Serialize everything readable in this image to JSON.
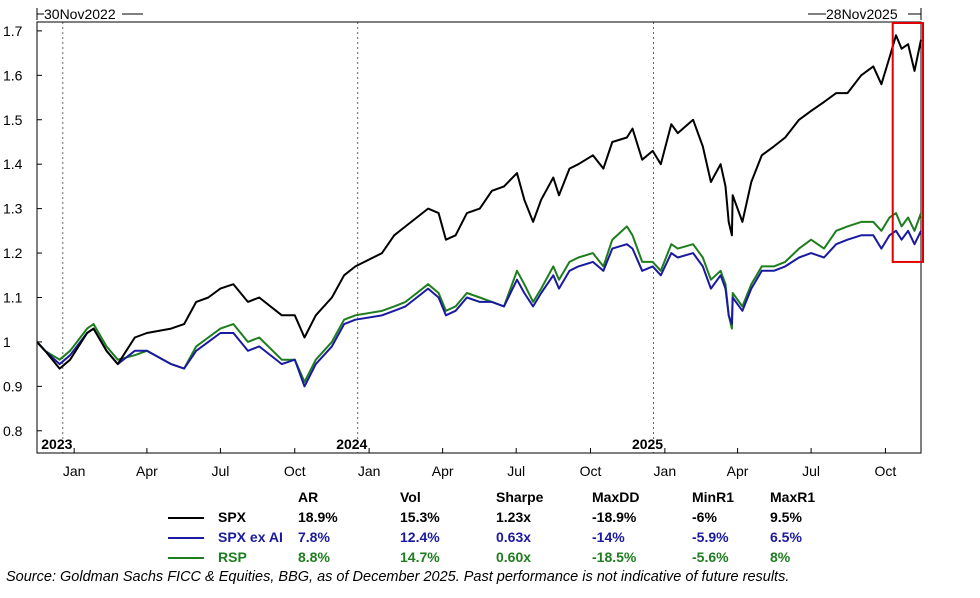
{
  "header": {
    "start_label": "30Nov2022",
    "end_label": "28Nov2025"
  },
  "chart_data": {
    "type": "line",
    "x_range": [
      "2022-11-30",
      "2025-11-28"
    ],
    "ylim": [
      0.75,
      1.72
    ],
    "yticks": [
      0.8,
      0.9,
      1,
      1.1,
      1.2,
      1.3,
      1.4,
      1.5,
      1.6,
      1.7
    ],
    "month_ticks": [
      {
        "date": "2023-01-15",
        "label": "Jan"
      },
      {
        "date": "2023-04-15",
        "label": "Apr"
      },
      {
        "date": "2023-07-15",
        "label": "Jul"
      },
      {
        "date": "2023-10-15",
        "label": "Oct"
      },
      {
        "date": "2024-01-15",
        "label": "Jan"
      },
      {
        "date": "2024-04-15",
        "label": "Apr"
      },
      {
        "date": "2024-07-15",
        "label": "Jul"
      },
      {
        "date": "2024-10-15",
        "label": "Oct"
      },
      {
        "date": "2025-01-15",
        "label": "Jan"
      },
      {
        "date": "2025-04-15",
        "label": "Apr"
      },
      {
        "date": "2025-07-15",
        "label": "Jul"
      },
      {
        "date": "2025-10-15",
        "label": "Oct"
      }
    ],
    "year_labels": [
      {
        "date": "2023-01-01",
        "label": "2023"
      },
      {
        "date": "2024-01-01",
        "label": "2024"
      },
      {
        "date": "2025-01-01",
        "label": "2025"
      }
    ],
    "grid": false,
    "highlight": {
      "from": "2025-10-24",
      "to": "2025-11-28",
      "color": "#e00000"
    },
    "series": [
      {
        "name": "SPX",
        "color": "#000000",
        "points": [
          [
            "2022-11-30",
            1.0
          ],
          [
            "2022-12-10",
            0.98
          ],
          [
            "2022-12-28",
            0.94
          ],
          [
            "2023-01-10",
            0.96
          ],
          [
            "2023-01-31",
            1.02
          ],
          [
            "2023-02-08",
            1.03
          ],
          [
            "2023-02-24",
            0.98
          ],
          [
            "2023-03-10",
            0.95
          ],
          [
            "2023-03-31",
            1.01
          ],
          [
            "2023-04-15",
            1.02
          ],
          [
            "2023-05-15",
            1.03
          ],
          [
            "2023-05-31",
            1.04
          ],
          [
            "2023-06-15",
            1.09
          ],
          [
            "2023-06-30",
            1.1
          ],
          [
            "2023-07-15",
            1.12
          ],
          [
            "2023-07-31",
            1.13
          ],
          [
            "2023-08-18",
            1.09
          ],
          [
            "2023-09-01",
            1.1
          ],
          [
            "2023-09-29",
            1.06
          ],
          [
            "2023-10-15",
            1.06
          ],
          [
            "2023-10-27",
            1.01
          ],
          [
            "2023-11-10",
            1.06
          ],
          [
            "2023-11-30",
            1.1
          ],
          [
            "2023-12-15",
            1.15
          ],
          [
            "2023-12-29",
            1.17
          ],
          [
            "2024-01-31",
            1.2
          ],
          [
            "2024-02-15",
            1.24
          ],
          [
            "2024-02-29",
            1.26
          ],
          [
            "2024-03-28",
            1.3
          ],
          [
            "2024-04-10",
            1.29
          ],
          [
            "2024-04-19",
            1.23
          ],
          [
            "2024-05-01",
            1.24
          ],
          [
            "2024-05-15",
            1.29
          ],
          [
            "2024-05-31",
            1.3
          ],
          [
            "2024-06-15",
            1.34
          ],
          [
            "2024-06-30",
            1.35
          ],
          [
            "2024-07-16",
            1.38
          ],
          [
            "2024-07-25",
            1.32
          ],
          [
            "2024-08-05",
            1.27
          ],
          [
            "2024-08-15",
            1.32
          ],
          [
            "2024-08-30",
            1.37
          ],
          [
            "2024-09-06",
            1.33
          ],
          [
            "2024-09-19",
            1.39
          ],
          [
            "2024-09-30",
            1.4
          ],
          [
            "2024-10-18",
            1.42
          ],
          [
            "2024-10-31",
            1.39
          ],
          [
            "2024-11-11",
            1.45
          ],
          [
            "2024-11-29",
            1.46
          ],
          [
            "2024-12-06",
            1.48
          ],
          [
            "2024-12-18",
            1.41
          ],
          [
            "2024-12-31",
            1.43
          ],
          [
            "2025-01-10",
            1.4
          ],
          [
            "2025-01-23",
            1.49
          ],
          [
            "2025-01-31",
            1.47
          ],
          [
            "2025-02-19",
            1.5
          ],
          [
            "2025-03-03",
            1.44
          ],
          [
            "2025-03-13",
            1.36
          ],
          [
            "2025-03-25",
            1.4
          ],
          [
            "2025-03-31",
            1.35
          ],
          [
            "2025-04-04",
            1.27
          ],
          [
            "2025-04-08",
            1.24
          ],
          [
            "2025-04-09",
            1.33
          ],
          [
            "2025-04-21",
            1.27
          ],
          [
            "2025-05-02",
            1.36
          ],
          [
            "2025-05-15",
            1.42
          ],
          [
            "2025-05-30",
            1.44
          ],
          [
            "2025-06-13",
            1.46
          ],
          [
            "2025-06-30",
            1.5
          ],
          [
            "2025-07-15",
            1.52
          ],
          [
            "2025-07-31",
            1.54
          ],
          [
            "2025-08-15",
            1.56
          ],
          [
            "2025-08-29",
            1.56
          ],
          [
            "2025-09-15",
            1.6
          ],
          [
            "2025-09-30",
            1.62
          ],
          [
            "2025-10-10",
            1.58
          ],
          [
            "2025-10-20",
            1.64
          ],
          [
            "2025-10-28",
            1.69
          ],
          [
            "2025-11-04",
            1.66
          ],
          [
            "2025-11-12",
            1.67
          ],
          [
            "2025-11-20",
            1.61
          ],
          [
            "2025-11-28",
            1.68
          ]
        ]
      },
      {
        "name": "SPX ex AI",
        "color": "#1a1aa0",
        "points": [
          [
            "2022-11-30",
            1.0
          ],
          [
            "2022-12-10",
            0.98
          ],
          [
            "2022-12-28",
            0.95
          ],
          [
            "2023-01-10",
            0.97
          ],
          [
            "2023-01-31",
            1.02
          ],
          [
            "2023-02-08",
            1.03
          ],
          [
            "2023-02-24",
            0.98
          ],
          [
            "2023-03-10",
            0.95
          ],
          [
            "2023-03-31",
            0.98
          ],
          [
            "2023-04-15",
            0.98
          ],
          [
            "2023-05-15",
            0.95
          ],
          [
            "2023-05-31",
            0.94
          ],
          [
            "2023-06-15",
            0.98
          ],
          [
            "2023-06-30",
            1.0
          ],
          [
            "2023-07-15",
            1.02
          ],
          [
            "2023-07-31",
            1.02
          ],
          [
            "2023-08-18",
            0.98
          ],
          [
            "2023-09-01",
            0.99
          ],
          [
            "2023-09-29",
            0.95
          ],
          [
            "2023-10-15",
            0.96
          ],
          [
            "2023-10-27",
            0.9
          ],
          [
            "2023-11-10",
            0.95
          ],
          [
            "2023-11-30",
            0.99
          ],
          [
            "2023-12-15",
            1.04
          ],
          [
            "2023-12-29",
            1.05
          ],
          [
            "2024-01-31",
            1.06
          ],
          [
            "2024-02-15",
            1.07
          ],
          [
            "2024-02-29",
            1.08
          ],
          [
            "2024-03-28",
            1.12
          ],
          [
            "2024-04-10",
            1.1
          ],
          [
            "2024-04-19",
            1.06
          ],
          [
            "2024-05-01",
            1.07
          ],
          [
            "2024-05-15",
            1.1
          ],
          [
            "2024-05-31",
            1.09
          ],
          [
            "2024-06-15",
            1.09
          ],
          [
            "2024-06-30",
            1.08
          ],
          [
            "2024-07-16",
            1.14
          ],
          [
            "2024-07-25",
            1.11
          ],
          [
            "2024-08-05",
            1.08
          ],
          [
            "2024-08-15",
            1.11
          ],
          [
            "2024-08-30",
            1.15
          ],
          [
            "2024-09-06",
            1.12
          ],
          [
            "2024-09-19",
            1.16
          ],
          [
            "2024-09-30",
            1.17
          ],
          [
            "2024-10-18",
            1.18
          ],
          [
            "2024-10-31",
            1.16
          ],
          [
            "2024-11-11",
            1.21
          ],
          [
            "2024-11-29",
            1.22
          ],
          [
            "2024-12-06",
            1.21
          ],
          [
            "2024-12-18",
            1.16
          ],
          [
            "2024-12-31",
            1.17
          ],
          [
            "2025-01-10",
            1.15
          ],
          [
            "2025-01-23",
            1.2
          ],
          [
            "2025-01-31",
            1.19
          ],
          [
            "2025-02-19",
            1.2
          ],
          [
            "2025-03-03",
            1.17
          ],
          [
            "2025-03-13",
            1.12
          ],
          [
            "2025-03-25",
            1.15
          ],
          [
            "2025-03-31",
            1.12
          ],
          [
            "2025-04-04",
            1.06
          ],
          [
            "2025-04-08",
            1.04
          ],
          [
            "2025-04-09",
            1.1
          ],
          [
            "2025-04-21",
            1.07
          ],
          [
            "2025-05-02",
            1.12
          ],
          [
            "2025-05-15",
            1.16
          ],
          [
            "2025-05-30",
            1.16
          ],
          [
            "2025-06-13",
            1.17
          ],
          [
            "2025-06-30",
            1.19
          ],
          [
            "2025-07-15",
            1.2
          ],
          [
            "2025-07-31",
            1.19
          ],
          [
            "2025-08-15",
            1.22
          ],
          [
            "2025-08-29",
            1.23
          ],
          [
            "2025-09-15",
            1.24
          ],
          [
            "2025-09-30",
            1.24
          ],
          [
            "2025-10-10",
            1.21
          ],
          [
            "2025-10-20",
            1.24
          ],
          [
            "2025-10-28",
            1.25
          ],
          [
            "2025-11-04",
            1.23
          ],
          [
            "2025-11-12",
            1.25
          ],
          [
            "2025-11-20",
            1.22
          ],
          [
            "2025-11-28",
            1.25
          ]
        ]
      },
      {
        "name": "RSP",
        "color": "#1e7d1e",
        "points": [
          [
            "2022-11-30",
            1.0
          ],
          [
            "2022-12-10",
            0.98
          ],
          [
            "2022-12-28",
            0.96
          ],
          [
            "2023-01-10",
            0.98
          ],
          [
            "2023-01-31",
            1.03
          ],
          [
            "2023-02-08",
            1.04
          ],
          [
            "2023-02-24",
            0.99
          ],
          [
            "2023-03-10",
            0.96
          ],
          [
            "2023-03-31",
            0.97
          ],
          [
            "2023-04-15",
            0.98
          ],
          [
            "2023-05-15",
            0.95
          ],
          [
            "2023-05-31",
            0.94
          ],
          [
            "2023-06-15",
            0.99
          ],
          [
            "2023-06-30",
            1.01
          ],
          [
            "2023-07-15",
            1.03
          ],
          [
            "2023-07-31",
            1.04
          ],
          [
            "2023-08-18",
            1.0
          ],
          [
            "2023-09-01",
            1.01
          ],
          [
            "2023-09-29",
            0.96
          ],
          [
            "2023-10-15",
            0.96
          ],
          [
            "2023-10-27",
            0.91
          ],
          [
            "2023-11-10",
            0.96
          ],
          [
            "2023-11-30",
            1.0
          ],
          [
            "2023-12-15",
            1.05
          ],
          [
            "2023-12-29",
            1.06
          ],
          [
            "2024-01-31",
            1.07
          ],
          [
            "2024-02-15",
            1.08
          ],
          [
            "2024-02-29",
            1.09
          ],
          [
            "2024-03-28",
            1.13
          ],
          [
            "2024-04-10",
            1.11
          ],
          [
            "2024-04-19",
            1.07
          ],
          [
            "2024-05-01",
            1.08
          ],
          [
            "2024-05-15",
            1.11
          ],
          [
            "2024-05-31",
            1.1
          ],
          [
            "2024-06-15",
            1.09
          ],
          [
            "2024-06-30",
            1.08
          ],
          [
            "2024-07-16",
            1.16
          ],
          [
            "2024-07-25",
            1.13
          ],
          [
            "2024-08-05",
            1.09
          ],
          [
            "2024-08-15",
            1.12
          ],
          [
            "2024-08-30",
            1.17
          ],
          [
            "2024-09-06",
            1.14
          ],
          [
            "2024-09-19",
            1.18
          ],
          [
            "2024-09-30",
            1.19
          ],
          [
            "2024-10-18",
            1.2
          ],
          [
            "2024-10-31",
            1.17
          ],
          [
            "2024-11-11",
            1.23
          ],
          [
            "2024-11-29",
            1.26
          ],
          [
            "2024-12-06",
            1.24
          ],
          [
            "2024-12-18",
            1.18
          ],
          [
            "2024-12-31",
            1.18
          ],
          [
            "2025-01-10",
            1.16
          ],
          [
            "2025-01-23",
            1.22
          ],
          [
            "2025-01-31",
            1.21
          ],
          [
            "2025-02-19",
            1.22
          ],
          [
            "2025-03-03",
            1.19
          ],
          [
            "2025-03-13",
            1.14
          ],
          [
            "2025-03-25",
            1.16
          ],
          [
            "2025-03-31",
            1.13
          ],
          [
            "2025-04-04",
            1.06
          ],
          [
            "2025-04-08",
            1.03
          ],
          [
            "2025-04-09",
            1.11
          ],
          [
            "2025-04-21",
            1.08
          ],
          [
            "2025-05-02",
            1.13
          ],
          [
            "2025-05-15",
            1.17
          ],
          [
            "2025-05-30",
            1.17
          ],
          [
            "2025-06-13",
            1.18
          ],
          [
            "2025-06-30",
            1.21
          ],
          [
            "2025-07-15",
            1.23
          ],
          [
            "2025-07-31",
            1.21
          ],
          [
            "2025-08-15",
            1.25
          ],
          [
            "2025-08-29",
            1.26
          ],
          [
            "2025-09-15",
            1.27
          ],
          [
            "2025-09-30",
            1.27
          ],
          [
            "2025-10-10",
            1.25
          ],
          [
            "2025-10-20",
            1.28
          ],
          [
            "2025-10-28",
            1.29
          ],
          [
            "2025-11-04",
            1.26
          ],
          [
            "2025-11-12",
            1.28
          ],
          [
            "2025-11-20",
            1.25
          ],
          [
            "2025-11-28",
            1.29
          ]
        ]
      }
    ]
  },
  "stats_table": {
    "headers": [
      "AR",
      "Vol",
      "Sharpe",
      "MaxDD",
      "MinR1",
      "MaxR1"
    ],
    "rows": [
      {
        "name": "SPX",
        "color": "#000000",
        "values": [
          "18.9%",
          "15.3%",
          "1.23x",
          "-18.9%",
          "-6%",
          "9.5%"
        ]
      },
      {
        "name": "SPX ex AI",
        "color": "#1a1aa0",
        "values": [
          "7.8%",
          "12.4%",
          "0.63x",
          "-14%",
          "-5.9%",
          "6.5%"
        ]
      },
      {
        "name": "RSP",
        "color": "#1e7d1e",
        "values": [
          "8.8%",
          "14.7%",
          "0.60x",
          "-18.5%",
          "-5.6%",
          "8%"
        ]
      }
    ]
  },
  "source": "Source: Goldman Sachs FICC & Equities, BBG, as of December 2025. Past performance is not indicative of future results."
}
